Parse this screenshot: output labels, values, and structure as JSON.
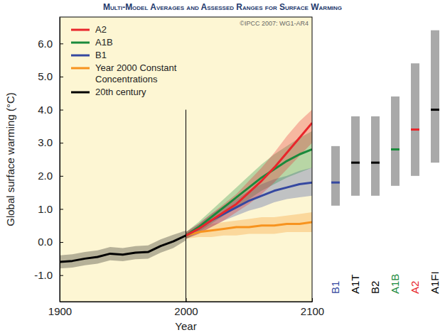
{
  "chart_data": [
    {
      "type": "line",
      "title": "Multi-Model Averages and Assessed Ranges for Surface Warming",
      "annotation": "©IPCC 2007: WG1-AR4",
      "x_label": "Year",
      "y_label": "Global surface warming (°C)",
      "xlim": [
        1900,
        2100
      ],
      "xticks": [
        1900,
        2000,
        2100
      ],
      "ylim": [
        -1.8,
        6.8
      ],
      "yticks": [
        {
          "value": -1,
          "label": "-1.0"
        },
        {
          "value": 0,
          "label": "0.0"
        },
        {
          "value": 1,
          "label": "1.0"
        },
        {
          "value": 2,
          "label": "2.0"
        },
        {
          "value": 3,
          "label": "3.0"
        },
        {
          "value": 4,
          "label": "4.0"
        },
        {
          "value": 5,
          "label": "5.0"
        },
        {
          "value": 6,
          "label": "6.0"
        }
      ],
      "legend": "upper left",
      "vline": {
        "x": 2000,
        "ymax": 4.0
      },
      "x": [
        1900,
        1910,
        1920,
        1930,
        1940,
        1950,
        1960,
        1970,
        1980,
        1990,
        2000,
        2010,
        2020,
        2030,
        2040,
        2050,
        2060,
        2070,
        2080,
        2090,
        2100
      ],
      "series": [
        {
          "name": "A2",
          "color": "#e8262b",
          "values": [
            null,
            null,
            null,
            null,
            null,
            null,
            null,
            null,
            null,
            null,
            0.2,
            0.4,
            0.65,
            0.9,
            1.15,
            1.5,
            1.85,
            2.25,
            2.7,
            3.15,
            3.6
          ],
          "lower": [
            null,
            null,
            null,
            null,
            null,
            null,
            null,
            null,
            null,
            null,
            0.1,
            0.25,
            0.45,
            0.65,
            0.9,
            1.15,
            1.45,
            1.8,
            2.2,
            2.6,
            3.0
          ],
          "upper": [
            null,
            null,
            null,
            null,
            null,
            null,
            null,
            null,
            null,
            null,
            0.3,
            0.55,
            0.85,
            1.15,
            1.45,
            1.85,
            2.25,
            2.7,
            3.2,
            3.65,
            4.0
          ]
        },
        {
          "name": "A1B",
          "color": "#1a8a3c",
          "values": [
            null,
            null,
            null,
            null,
            null,
            null,
            null,
            null,
            null,
            null,
            0.2,
            0.45,
            0.75,
            1.05,
            1.35,
            1.65,
            1.95,
            2.2,
            2.45,
            2.65,
            2.8
          ],
          "lower": [
            null,
            null,
            null,
            null,
            null,
            null,
            null,
            null,
            null,
            null,
            0.1,
            0.3,
            0.55,
            0.8,
            1.05,
            1.3,
            1.55,
            1.75,
            1.95,
            2.1,
            2.25
          ],
          "upper": [
            null,
            null,
            null,
            null,
            null,
            null,
            null,
            null,
            null,
            null,
            0.3,
            0.6,
            0.95,
            1.3,
            1.65,
            2.0,
            2.35,
            2.65,
            2.9,
            3.15,
            3.35
          ]
        },
        {
          "name": "B1",
          "color": "#3548a0",
          "values": [
            null,
            null,
            null,
            null,
            null,
            null,
            null,
            null,
            null,
            null,
            0.2,
            0.4,
            0.65,
            0.85,
            1.05,
            1.25,
            1.4,
            1.55,
            1.65,
            1.75,
            1.8
          ],
          "lower": [
            null,
            null,
            null,
            null,
            null,
            null,
            null,
            null,
            null,
            null,
            0.1,
            0.25,
            0.45,
            0.65,
            0.8,
            0.95,
            1.05,
            1.2,
            1.3,
            1.35,
            1.4
          ],
          "upper": [
            null,
            null,
            null,
            null,
            null,
            null,
            null,
            null,
            null,
            null,
            0.3,
            0.55,
            0.85,
            1.1,
            1.3,
            1.55,
            1.75,
            1.9,
            2.0,
            2.15,
            2.25
          ]
        },
        {
          "name": "Year 2000 Constant\nConcentrations",
          "color": "#f7931e",
          "values": [
            null,
            null,
            null,
            null,
            null,
            null,
            null,
            null,
            null,
            null,
            0.2,
            0.3,
            0.35,
            0.4,
            0.45,
            0.45,
            0.5,
            0.5,
            0.55,
            0.55,
            0.6
          ],
          "lower": [
            null,
            null,
            null,
            null,
            null,
            null,
            null,
            null,
            null,
            null,
            0.1,
            0.15,
            0.15,
            0.2,
            0.2,
            0.25,
            0.25,
            0.25,
            0.3,
            0.3,
            0.3
          ],
          "upper": [
            null,
            null,
            null,
            null,
            null,
            null,
            null,
            null,
            null,
            null,
            0.3,
            0.45,
            0.55,
            0.6,
            0.65,
            0.7,
            0.75,
            0.75,
            0.8,
            0.85,
            0.9
          ]
        },
        {
          "name": "20th century",
          "color": "#000000",
          "values": [
            -0.6,
            -0.57,
            -0.5,
            -0.45,
            -0.35,
            -0.38,
            -0.32,
            -0.3,
            -0.12,
            0.02,
            0.2,
            null,
            null,
            null,
            null,
            null,
            null,
            null,
            null,
            null,
            null
          ],
          "lower": [
            -0.8,
            -0.77,
            -0.7,
            -0.65,
            -0.55,
            -0.58,
            -0.52,
            -0.5,
            -0.32,
            -0.18,
            0.05,
            null,
            null,
            null,
            null,
            null,
            null,
            null,
            null,
            null,
            null
          ],
          "upper": [
            -0.4,
            -0.37,
            -0.3,
            -0.25,
            -0.15,
            -0.18,
            -0.12,
            -0.1,
            0.08,
            0.22,
            0.35,
            null,
            null,
            null,
            null,
            null,
            null,
            null,
            null,
            null,
            null
          ]
        }
      ]
    },
    {
      "type": "range",
      "tick_labels": "x",
      "color": "#a9a9a9",
      "categories": [
        "B1",
        "A1T",
        "B2",
        "A1B",
        "A2",
        "A1FI"
      ],
      "colors": [
        "#3548a0",
        "#000000",
        "#000000",
        "#1a8a3c",
        "#e8262b",
        "#000000"
      ],
      "low": [
        1.1,
        1.4,
        1.4,
        1.7,
        2.0,
        2.4
      ],
      "high": [
        2.9,
        3.8,
        3.8,
        4.4,
        5.4,
        6.4
      ],
      "best": [
        1.8,
        2.4,
        2.4,
        2.8,
        3.4,
        4.0
      ]
    }
  ]
}
